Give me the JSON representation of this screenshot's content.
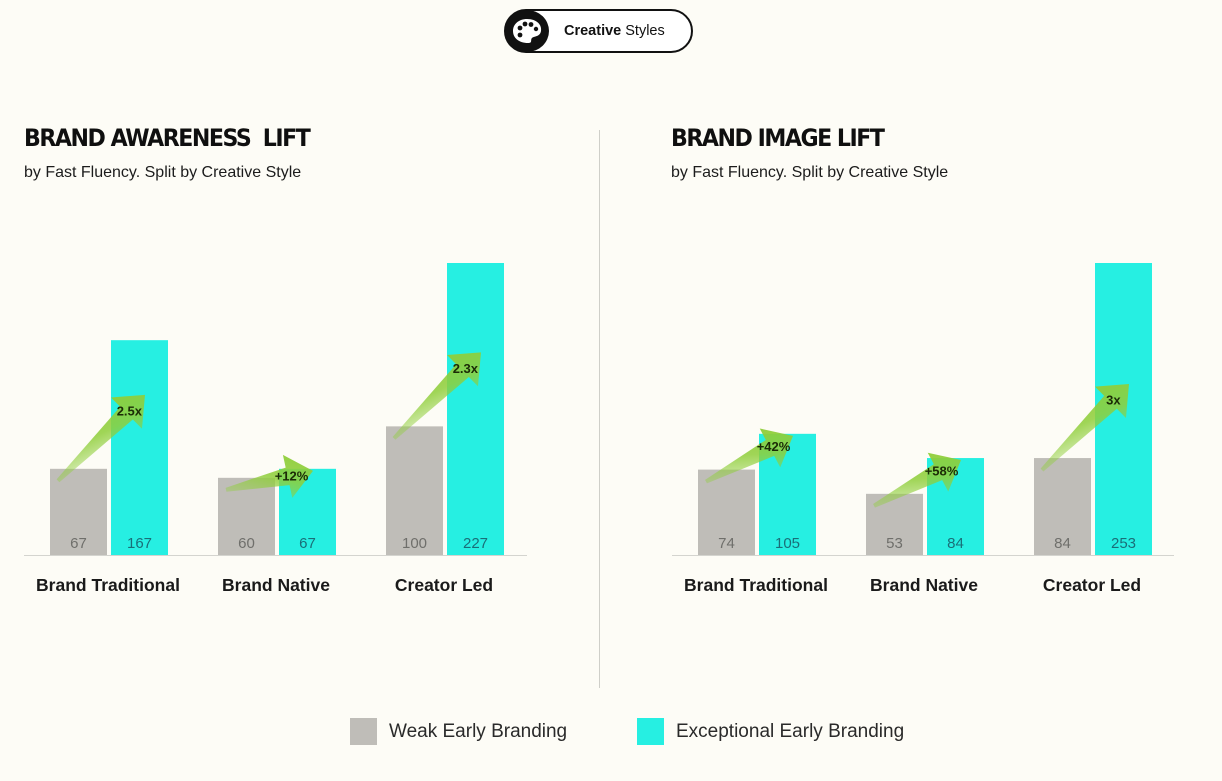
{
  "header_badge": {
    "bold": "Creative",
    "rest": "Styles",
    "icon": "palette-icon"
  },
  "colors": {
    "weak": "#bfbdb8",
    "exceptional": "#26efe2",
    "arrow": "#8fce3a",
    "background": "#fdfcf6"
  },
  "legend": [
    {
      "label": "Weak Early Branding",
      "color": "#bfbdb8"
    },
    {
      "label": "Exceptional Early Branding",
      "color": "#26efe2"
    }
  ],
  "chart_data": [
    {
      "type": "bar",
      "title": "BRAND AWARENESS  LIFT",
      "subtitle": "by Fast Fluency. Split by Creative Style",
      "categories": [
        "Brand Traditional",
        "Brand Native",
        "Creator Led"
      ],
      "series": [
        {
          "name": "Weak Early Branding",
          "values": [
            67,
            60,
            100
          ]
        },
        {
          "name": "Exceptional Early Branding",
          "values": [
            167,
            67,
            227
          ]
        }
      ],
      "lift_labels": [
        "2.5x",
        "+12%",
        "2.3x"
      ],
      "ylim": [
        0,
        227
      ]
    },
    {
      "type": "bar",
      "title": "BRAND IMAGE LIFT",
      "subtitle": "by Fast Fluency. Split by Creative Style",
      "categories": [
        "Brand Traditional",
        "Brand Native",
        "Creator Led"
      ],
      "series": [
        {
          "name": "Weak Early Branding",
          "values": [
            74,
            53,
            84
          ]
        },
        {
          "name": "Exceptional Early Branding",
          "values": [
            105,
            84,
            253
          ]
        }
      ],
      "lift_labels": [
        "+42%",
        "+58%",
        "3x"
      ],
      "ylim": [
        0,
        253
      ]
    }
  ]
}
